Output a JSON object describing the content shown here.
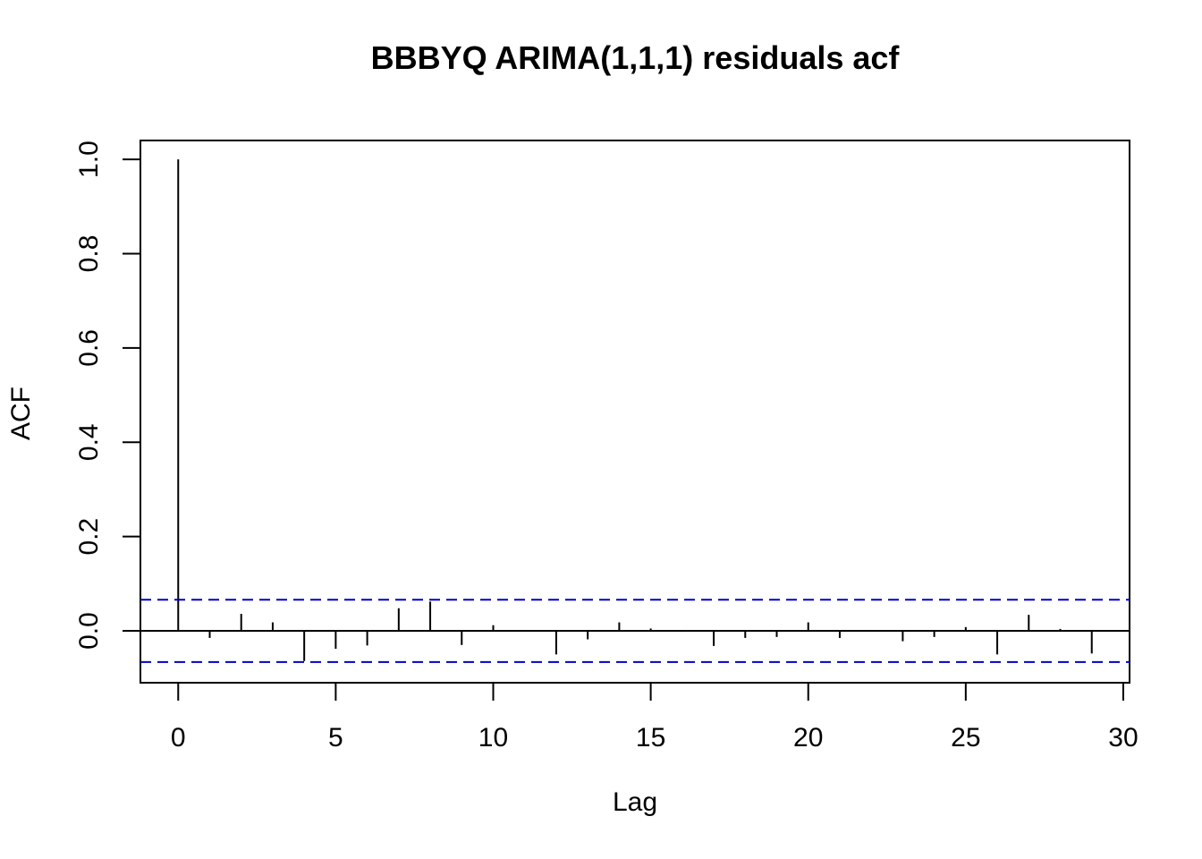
{
  "chart_data": {
    "type": "bar",
    "title": "BBBYQ ARIMA(1,1,1)  residuals acf",
    "xlabel": "Lag",
    "ylabel": "ACF",
    "xlim": [
      -1.2,
      30.2
    ],
    "ylim": [
      -0.11,
      1.04
    ],
    "x_ticks": [
      0,
      5,
      10,
      15,
      20,
      25,
      30
    ],
    "x_tick_labels": [
      "0",
      "5",
      "10",
      "15",
      "20",
      "25",
      "30"
    ],
    "y_ticks": [
      0.0,
      0.2,
      0.4,
      0.6,
      0.8,
      1.0
    ],
    "y_tick_labels": [
      "0.0",
      "0.2",
      "0.4",
      "0.6",
      "0.8",
      "1.0"
    ],
    "lags": [
      0,
      1,
      2,
      3,
      4,
      5,
      6,
      7,
      8,
      9,
      10,
      11,
      12,
      13,
      14,
      15,
      16,
      17,
      18,
      19,
      20,
      21,
      22,
      23,
      24,
      25,
      26,
      27,
      28,
      29
    ],
    "values": [
      1.0,
      -0.015,
      0.036,
      0.018,
      -0.064,
      -0.038,
      -0.031,
      0.048,
      0.062,
      -0.03,
      0.012,
      0.002,
      -0.05,
      -0.018,
      0.018,
      0.005,
      -0.002,
      -0.032,
      -0.015,
      -0.013,
      0.018,
      -0.015,
      0.002,
      -0.022,
      -0.013,
      0.008,
      -0.05,
      0.034,
      0.004,
      -0.048
    ],
    "conf_limit": 0.066,
    "grid": false,
    "colors": {
      "bars": "#000000",
      "conf_lines": "#0000cc",
      "zero_line": "#000000"
    }
  }
}
